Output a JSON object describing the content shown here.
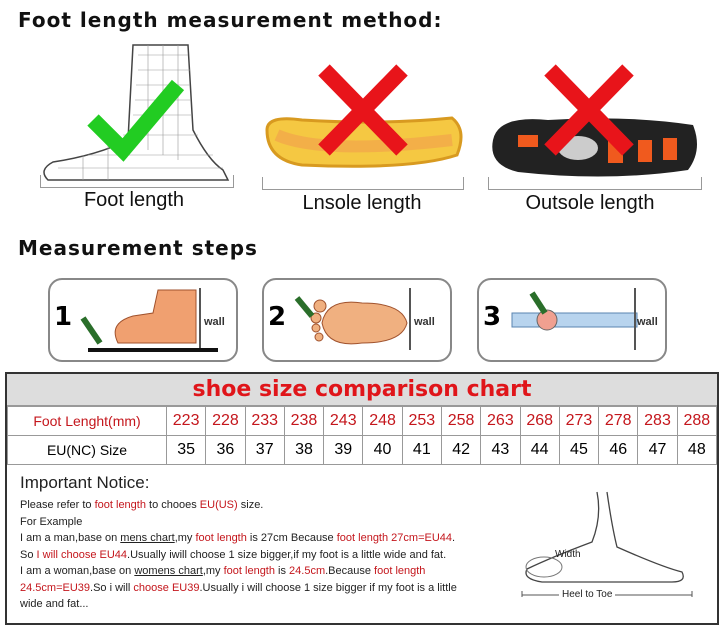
{
  "section1_title": "Foot length measurement method:",
  "methods": [
    {
      "label": "Foot length",
      "mark": "check-icon",
      "mark_color": "#22cc22"
    },
    {
      "label": "Lnsole length",
      "mark": "cross-icon",
      "mark_color": "#e8141a"
    },
    {
      "label": "Outsole length",
      "mark": "cross-icon",
      "mark_color": "#e8141a"
    }
  ],
  "section2_title": "Measurement steps",
  "steps": [
    {
      "number": "1",
      "wall_label": "wall"
    },
    {
      "number": "2",
      "wall_label": "wall"
    },
    {
      "number": "3",
      "wall_label": "wall"
    }
  ],
  "chart": {
    "title": "shoe size comparison chart",
    "row1_label": "Foot Lenght(mm)",
    "row2_label": "EU(NC) Size",
    "foot_length_mm": [
      "223",
      "228",
      "233",
      "238",
      "243",
      "248",
      "253",
      "258",
      "263",
      "268",
      "273",
      "278",
      "283",
      "288"
    ],
    "eu_size": [
      "35",
      "36",
      "37",
      "38",
      "39",
      "40",
      "41",
      "42",
      "43",
      "44",
      "45",
      "46",
      "47",
      "48"
    ]
  },
  "notice": {
    "title": "Important Notice:",
    "lines": [
      [
        {
          "t": "Please refer to "
        },
        {
          "t": "foot length",
          "s": "r"
        },
        {
          "t": " to chooes "
        },
        {
          "t": "EU(US)",
          "s": "r"
        },
        {
          "t": " size."
        }
      ],
      [
        {
          "t": "For Example"
        }
      ],
      [
        {
          "t": "I am a man,base on "
        },
        {
          "t": "mens chart",
          "s": "u"
        },
        {
          "t": ",my "
        },
        {
          "t": "foot length",
          "s": "r"
        },
        {
          "t": " is 27cm Because "
        },
        {
          "t": "foot length 27cm=EU44",
          "s": "r"
        },
        {
          "t": "."
        }
      ],
      [
        {
          "t": "So "
        },
        {
          "t": "I will choose EU44",
          "s": "r"
        },
        {
          "t": ".Usually iwill choose 1 size bigger,if my foot is a little wide and fat."
        }
      ],
      [
        {
          "t": "I am a woman,base on "
        },
        {
          "t": "womens chart",
          "s": "u"
        },
        {
          "t": ",my "
        },
        {
          "t": "foot length",
          "s": "r"
        },
        {
          "t": " is "
        },
        {
          "t": "24.5cm",
          "s": "r"
        },
        {
          "t": ".Because "
        },
        {
          "t": "foot length",
          "s": "r"
        }
      ],
      [
        {
          "t": "24.5cm=EU39",
          "s": "r"
        },
        {
          "t": ".So i will "
        },
        {
          "t": "choose EU39",
          "s": "r"
        },
        {
          "t": ".Usually i will choose 1 size bigger if my foot is a little"
        }
      ],
      [
        {
          "t": "wide and fat..."
        }
      ]
    ],
    "diagram_width_label": "Width",
    "diagram_heel_label": "Heel to Toe"
  }
}
